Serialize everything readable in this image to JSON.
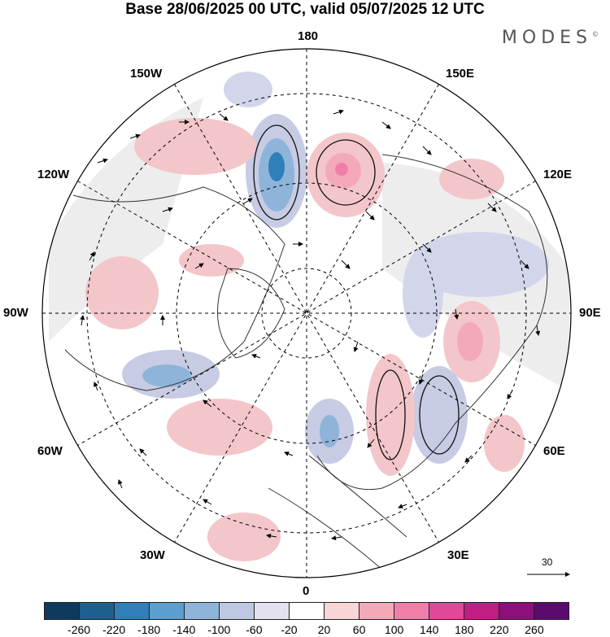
{
  "header": {
    "title": "Base 28/06/2025 00 UTC, valid 05/07/2025 12 UTC",
    "brand": "MODES",
    "brand_mark": "©"
  },
  "map": {
    "projection": "north polar stereographic",
    "longitude_labels": {
      "top": "180",
      "top_right": "150E",
      "right_upper": "120E",
      "right": "90E",
      "right_lower": "60E",
      "bottom_right": "30E",
      "bottom": "0",
      "bottom_left": "30W",
      "left_lower": "60W",
      "left": "90W",
      "left_upper": "120W",
      "top_left": "150W"
    },
    "wind_vector_reference": "30",
    "colors": {
      "ocean_neutral": "#ededed",
      "positive_anomaly": "#f3c6ca",
      "negative_anomaly": "#c7cbe3"
    }
  },
  "colorbar": {
    "ticks": [
      "-260",
      "-220",
      "-180",
      "-140",
      "-100",
      "-60",
      "-20",
      "20",
      "60",
      "100",
      "140",
      "180",
      "220",
      "260"
    ],
    "colors": [
      "#0e3a5e",
      "#1d5f8f",
      "#2f7fb8",
      "#5a9fcf",
      "#8fb4d9",
      "#bfc8e2",
      "#e2e2ef",
      "#ffffff",
      "#f9d6d6",
      "#f4a9b8",
      "#ef7fa8",
      "#e0489a",
      "#bf1f85",
      "#8c0f7a",
      "#5b0a6d"
    ]
  }
}
